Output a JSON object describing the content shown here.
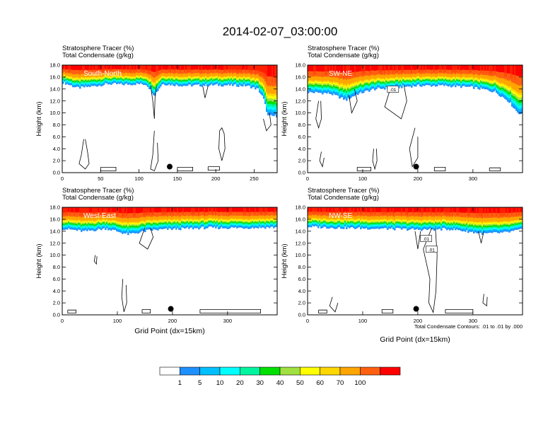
{
  "figure": {
    "title": "2014-02-07_03:00:00",
    "note": "Total Condensate Contours: .01 to .01 by .000",
    "contour_label": ".01"
  },
  "colorbar": {
    "levels": [
      "1",
      "5",
      "10",
      "20",
      "30",
      "40",
      "50",
      "60",
      "70",
      "100"
    ],
    "colors": [
      "#ffffff",
      "#1e90ff",
      "#00bfff",
      "#00ffff",
      "#00f5a0",
      "#00e000",
      "#a0e040",
      "#ffff00",
      "#ffd700",
      "#ffa500",
      "#ff6010",
      "#ff0000"
    ]
  },
  "chart_data": [
    {
      "type": "heatmap",
      "field_label": "Stratosphere Tracer   (%)",
      "contour_field_label": "Total Condensate   (g/kg)",
      "panel_label": "South-North",
      "ylabel": "Height (km)",
      "xlabel": "",
      "xlim": [
        0,
        280
      ],
      "ylim": [
        0,
        18
      ],
      "xticks": [
        "0",
        "50",
        "100",
        "150",
        "200",
        "250"
      ],
      "yticks": [
        "0.0",
        "2.0",
        "4.0",
        "6.0",
        "8.0",
        "10.0",
        "12.0",
        "14.0",
        "16.0",
        "18.0"
      ],
      "tracer_base_km": [
        [
          0,
          15.2
        ],
        [
          20,
          14.2
        ],
        [
          40,
          14.5
        ],
        [
          60,
          14.9
        ],
        [
          80,
          14.8
        ],
        [
          100,
          14.9
        ],
        [
          110,
          14.8
        ],
        [
          120,
          13.0
        ],
        [
          130,
          14.9
        ],
        [
          160,
          14.6
        ],
        [
          200,
          14.7
        ],
        [
          240,
          14.6
        ],
        [
          255,
          14.0
        ],
        [
          262,
          12.5
        ],
        [
          268,
          9.5
        ],
        [
          280,
          9.5
        ]
      ],
      "marker": {
        "x": 140,
        "y": 1.0
      },
      "contour_labels": []
    },
    {
      "type": "heatmap",
      "field_label": "Stratosphere Tracer   (%)",
      "contour_field_label": "Total Condensate   (g/kg)",
      "panel_label": "SW-NE",
      "ylabel": "Height (km)",
      "xlabel": "",
      "xlim": [
        0,
        390
      ],
      "ylim": [
        0,
        18
      ],
      "xticks": [
        "0",
        "100",
        "200",
        "300"
      ],
      "yticks": [
        "0.0",
        "2.0",
        "4.0",
        "6.0",
        "8.0",
        "10.0",
        "12.0",
        "14.0",
        "16.0",
        "18.0"
      ],
      "tracer_base_km": [
        [
          0,
          13.5
        ],
        [
          40,
          13.3
        ],
        [
          70,
          12.2
        ],
        [
          90,
          13.2
        ],
        [
          120,
          14.0
        ],
        [
          160,
          14.3
        ],
        [
          200,
          14.6
        ],
        [
          250,
          14.6
        ],
        [
          300,
          14.3
        ],
        [
          340,
          13.6
        ],
        [
          365,
          12.0
        ],
        [
          380,
          10.2
        ],
        [
          390,
          9.7
        ]
      ],
      "marker": {
        "x": 197,
        "y": 1.0
      },
      "contour_labels": [
        ".01"
      ]
    },
    {
      "type": "heatmap",
      "field_label": "Stratosphere Tracer   (%)",
      "contour_field_label": "Total Condensate   (g/kg)",
      "panel_label": "West-East",
      "ylabel": "Height (km)",
      "xlabel": "Grid Point (dx=15km)",
      "xlim": [
        0,
        390
      ],
      "ylim": [
        0,
        18
      ],
      "xticks": [
        "0",
        "100",
        "200",
        "300"
      ],
      "yticks": [
        "0.0",
        "2.0",
        "4.0",
        "6.0",
        "8.0",
        "10.0",
        "12.0",
        "14.0",
        "16.0",
        "18.0"
      ],
      "tracer_base_km": [
        [
          0,
          14.5
        ],
        [
          40,
          14.0
        ],
        [
          80,
          14.5
        ],
        [
          120,
          13.5
        ],
        [
          160,
          14.2
        ],
        [
          200,
          14.4
        ],
        [
          260,
          14.6
        ],
        [
          320,
          14.6
        ],
        [
          390,
          14.7
        ]
      ],
      "marker": {
        "x": 197,
        "y": 1.0
      },
      "contour_labels": []
    },
    {
      "type": "heatmap",
      "field_label": "Stratosphere Tracer   (%)",
      "contour_field_label": "Total Condensate   (g/kg)",
      "panel_label": "NW-SE",
      "ylabel": "Height (km)",
      "xlabel": "Grid Point (dx=15km)",
      "xlim": [
        0,
        390
      ],
      "ylim": [
        0,
        18
      ],
      "xticks": [
        "0",
        "100",
        "200",
        "300"
      ],
      "yticks": [
        "0.0",
        "2.0",
        "4.0",
        "6.0",
        "8.0",
        "10.0",
        "12.0",
        "14.0",
        "16.0",
        "18.0"
      ],
      "tracer_base_km": [
        [
          0,
          14.8
        ],
        [
          60,
          14.6
        ],
        [
          120,
          14.5
        ],
        [
          200,
          14.3
        ],
        [
          260,
          14.4
        ],
        [
          320,
          13.6
        ],
        [
          360,
          13.8
        ],
        [
          390,
          14.3
        ]
      ],
      "marker": {
        "x": 197,
        "y": 1.0
      },
      "contour_labels": [
        ".01",
        ".01"
      ]
    }
  ]
}
